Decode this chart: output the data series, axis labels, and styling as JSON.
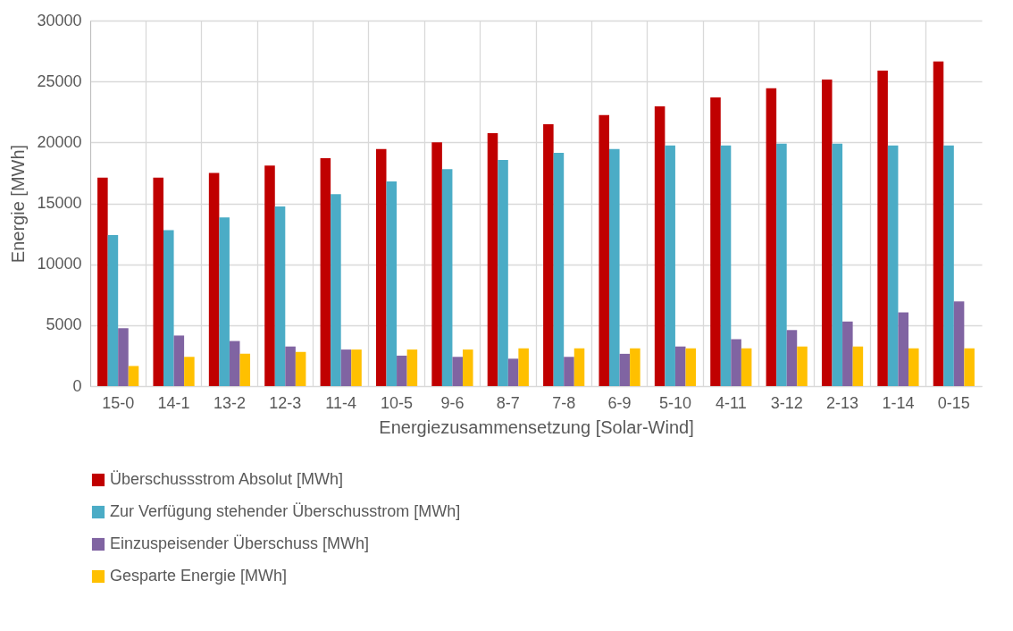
{
  "chart_data": {
    "type": "bar",
    "xlabel": "Energiezusammensetzung  [Solar-Wind]",
    "ylabel": "Energie [MWh]",
    "categories": [
      "15-0",
      "14-1",
      "13-2",
      "12-3",
      "11-4",
      "10-5",
      "9-6",
      "8-7",
      "7-8",
      "6-9",
      "5-10",
      "4-11",
      "3-12",
      "2-13",
      "1-14",
      "0-15"
    ],
    "series": [
      {
        "name": "Überschussstrom Absolut [MWh]",
        "color": "#c00000",
        "values": [
          17100,
          17100,
          17500,
          18100,
          18700,
          19450,
          20000,
          20750,
          21500,
          22250,
          22950,
          23700,
          24450,
          25150,
          25900,
          26650
        ]
      },
      {
        "name": "Zur Verfügung stehender Überschusstrom [MWh]",
        "color": "#4bacc6",
        "values": [
          12400,
          12800,
          13850,
          14750,
          15750,
          16800,
          17800,
          18550,
          19150,
          19450,
          19750,
          19750,
          19900,
          19900,
          19750,
          19750
        ]
      },
      {
        "name": "Einzuspeisender Überschuss [MWh]",
        "color": "#8064a2",
        "values": [
          4750,
          4150,
          3700,
          3250,
          3000,
          2500,
          2400,
          2250,
          2400,
          2650,
          3250,
          3850,
          4600,
          5300,
          6050,
          6950
        ]
      },
      {
        "name": "Gesparte Energie [MWh]",
        "color": "#ffc000",
        "values": [
          1650,
          2400,
          2650,
          2800,
          3000,
          3000,
          3000,
          3100,
          3100,
          3100,
          3100,
          3100,
          3250,
          3250,
          3100,
          3100
        ]
      }
    ],
    "ylim": [
      0,
      30000
    ],
    "yticks": [
      0,
      5000,
      10000,
      15000,
      20000,
      25000,
      30000
    ],
    "grid": true,
    "legend": "bottom"
  }
}
